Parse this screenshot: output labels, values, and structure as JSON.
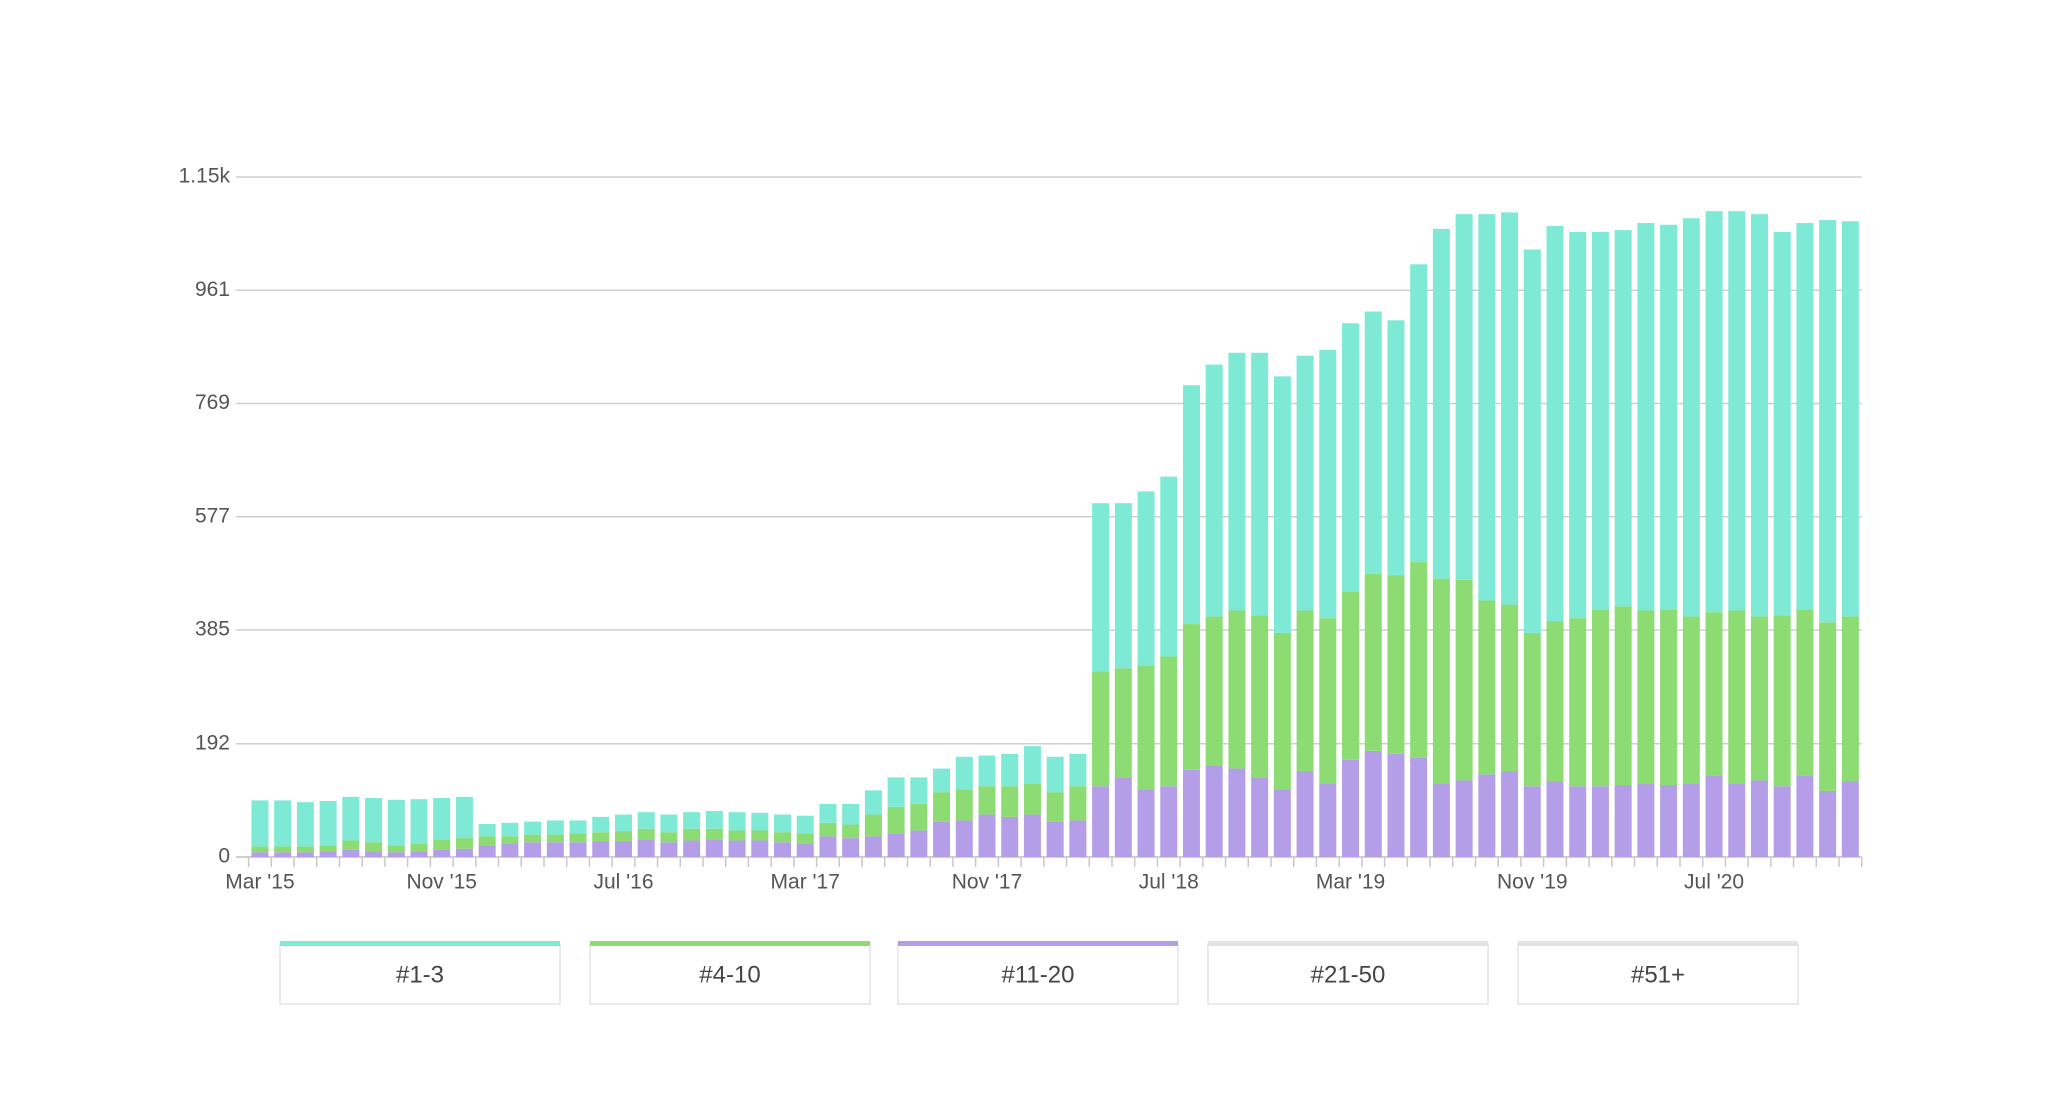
{
  "chart_data": {
    "type": "bar",
    "stacked": true,
    "categories": [
      "Mar '15",
      null,
      null,
      null,
      null,
      null,
      null,
      null,
      "Nov '15",
      null,
      null,
      null,
      null,
      null,
      null,
      null,
      "Jul '16",
      null,
      null,
      null,
      null,
      null,
      null,
      null,
      "Mar '17",
      null,
      null,
      null,
      null,
      null,
      null,
      null,
      "Nov '17",
      null,
      null,
      null,
      null,
      null,
      null,
      null,
      "Jul '18",
      null,
      null,
      null,
      null,
      null,
      null,
      null,
      "Mar '19",
      null,
      null,
      null,
      null,
      null,
      null,
      null,
      "Nov '19",
      null,
      null,
      null,
      null,
      null,
      null,
      null,
      "Jul '20",
      null,
      null,
      null,
      null,
      null,
      null
    ],
    "series": [
      {
        "name": "#11-20",
        "color": "#b59ee8",
        "values": [
          8,
          8,
          8,
          10,
          12,
          10,
          8,
          10,
          12,
          14,
          20,
          22,
          25,
          25,
          25,
          27,
          27,
          30,
          25,
          28,
          30,
          28,
          28,
          25,
          22,
          35,
          32,
          35,
          40,
          45,
          60,
          62,
          72,
          68,
          72,
          60,
          62,
          120,
          135,
          115,
          120,
          148,
          155,
          150,
          135,
          115,
          145,
          125,
          165,
          180,
          175,
          168,
          125,
          130,
          140,
          145,
          120,
          128,
          120,
          120,
          122,
          125,
          122,
          125,
          138,
          125,
          130,
          120,
          138,
          112,
          128
        ]
      },
      {
        "name": "#4-10",
        "color": "#8ddb73",
        "values": [
          10,
          10,
          10,
          10,
          16,
          15,
          12,
          12,
          18,
          18,
          15,
          13,
          13,
          13,
          15,
          15,
          17,
          18,
          17,
          20,
          18,
          17,
          17,
          17,
          18,
          23,
          23,
          37,
          45,
          45,
          50,
          53,
          48,
          52,
          53,
          50,
          58,
          195,
          185,
          210,
          220,
          247,
          253,
          268,
          275,
          265,
          273,
          280,
          285,
          300,
          303,
          332,
          347,
          340,
          295,
          283,
          260,
          272,
          285,
          300,
          303,
          293,
          298,
          283,
          277,
          293,
          278,
          290,
          282,
          286,
          280
        ]
      },
      {
        "name": "#1-3",
        "color": "#7eead6",
        "values": [
          78,
          78,
          75,
          75,
          74,
          75,
          77,
          76,
          70,
          70,
          21,
          23,
          22,
          24,
          22,
          26,
          28,
          28,
          30,
          28,
          30,
          31,
          30,
          30,
          30,
          32,
          35,
          41,
          50,
          45,
          40,
          55,
          52,
          55,
          63,
          60,
          55,
          285,
          280,
          295,
          305,
          405,
          427,
          437,
          445,
          435,
          432,
          455,
          455,
          445,
          432,
          505,
          593,
          620,
          655,
          665,
          650,
          670,
          655,
          640,
          638,
          657,
          652,
          675,
          680,
          677,
          682,
          650,
          655,
          682,
          670
        ]
      },
      {
        "name": "#21-50",
        "color": "#dfe4e7",
        "values": [
          0,
          0,
          0,
          0,
          0,
          0,
          0,
          0,
          0,
          0,
          0,
          0,
          0,
          0,
          0,
          0,
          0,
          0,
          0,
          0,
          0,
          0,
          0,
          0,
          0,
          0,
          0,
          0,
          0,
          0,
          0,
          0,
          0,
          0,
          0,
          0,
          0,
          0,
          0,
          0,
          0,
          0,
          0,
          0,
          0,
          0,
          0,
          0,
          0,
          0,
          0,
          0,
          0,
          0,
          0,
          0,
          0,
          0,
          0,
          0,
          0,
          0,
          0,
          0,
          0,
          0,
          0,
          0,
          0,
          0,
          0
        ]
      },
      {
        "name": "#51+",
        "color": "#dfe4e7",
        "values": [
          0,
          0,
          0,
          0,
          0,
          0,
          0,
          0,
          0,
          0,
          0,
          0,
          0,
          0,
          0,
          0,
          0,
          0,
          0,
          0,
          0,
          0,
          0,
          0,
          0,
          0,
          0,
          0,
          0,
          0,
          0,
          0,
          0,
          0,
          0,
          0,
          0,
          0,
          0,
          0,
          0,
          0,
          0,
          0,
          0,
          0,
          0,
          0,
          0,
          0,
          0,
          0,
          0,
          0,
          0,
          0,
          0,
          0,
          0,
          0,
          0,
          0,
          0,
          0,
          0,
          0,
          0,
          0,
          0,
          0,
          0
        ]
      }
    ],
    "legend_order": [
      2,
      1,
      0,
      3,
      4
    ],
    "ylim": [
      0,
      1153
    ],
    "yticks": [
      0,
      192,
      385,
      577,
      769,
      961,
      {
        "value": 1153,
        "label": "1.15k"
      }
    ],
    "grid": true
  }
}
